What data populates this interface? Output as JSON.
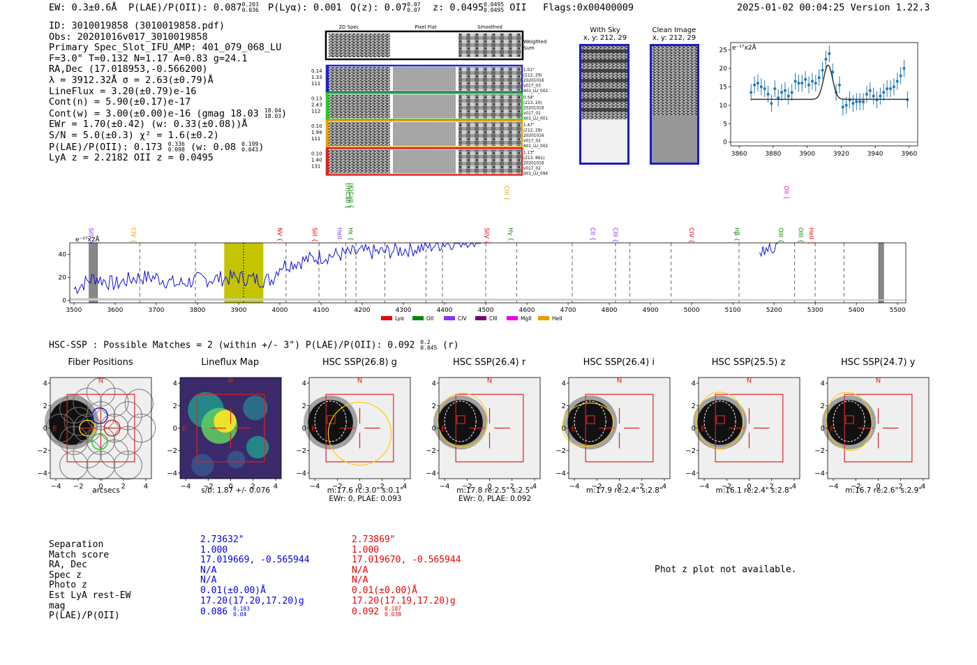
{
  "header": {
    "ew": "EW: 0.3±0.6Å",
    "plae_label": "P(LAE)/P(OII): 0.087",
    "plae_up": "0.203",
    "plae_dn": "0.036",
    "plya": "P(Lyα): 0.001",
    "q_label": "Q(z): 0.07",
    "q_up": "0.07",
    "q_dn": "0.07",
    "z_label": "z: 0.0495",
    "z_up": "0.0495",
    "z_dn": "0.0495",
    "z_line": "OII",
    "flags": "Flags:0x00400009",
    "datetime": "2025-01-02 00:04:25",
    "version": "Version 1.22.3"
  },
  "info": {
    "id": "ID: 3010019858 (3010019858.pdf)",
    "obs": "Obs: 20201016v017_3010019858",
    "primary": "Primary Spec_Slot_IFU_AMP: 401_079_068_LU",
    "fwhm": "F=3.0\"  T=0.132  N=1.17  A=0.83  g=24.1",
    "radec": "RA,Dec (17.018953,-0.566200)",
    "lambda": "λ = 3912.32Å  σ = 2.63(±0.79)Å",
    "lineflux": "LineFlux = 3.20(±0.79)e-16",
    "contn": "Cont(n) = 5.90(±0.17)e-17",
    "contw": "Cont(w) = 3.00(±0.00)e-16 (gmag 18.03",
    "contw_up": "18.04",
    "contw_dn": "18.03",
    "ewr": "EWr = 1.70(±0.42) (w: 0.33(±0.08))Å",
    "sn": "S/N = 5.0(±0.3)  χ² = 1.6(±0.2)",
    "plae": "P(LAE)/P(OII): 0.173",
    "plae_up": "0.336",
    "plae_dn": "0.098",
    "plae_w": "(w: 0.08",
    "plae_w_up": "0.199",
    "plae_w_dn": "0.043",
    "lya": "LyA z = 2.2182   OII z = 0.0495"
  },
  "fiber_panel": {
    "col_2dspec": "2D Spec",
    "col_pixflat": "Pixel Flat",
    "col_smoothed": "Smoothed",
    "weighted": "Weighted",
    "sum": "Sum",
    "rows": [
      {
        "color": "#2222cc",
        "left": [
          "0.14",
          "1.33",
          "111"
        ],
        "right": [
          "1.01\"",
          "(212, 29)",
          "20201016",
          "v017_03",
          "401_LU_002"
        ]
      },
      {
        "color": "#22cc22",
        "left": [
          "0.13",
          "2.43",
          "112"
        ],
        "right": [
          "0.54\"",
          "(213, 20)",
          "20201016",
          "v017_01",
          "401_LU_001"
        ]
      },
      {
        "color": "#e8a000",
        "left": [
          "0.10",
          "1.94",
          "111"
        ],
        "right": [
          "1.47\"",
          "(212, 29)",
          "20201016",
          "v017_02",
          "401_LU_002"
        ]
      },
      {
        "color": "#dd2222",
        "left": [
          "0.10",
          "1.40",
          "131"
        ],
        "right": [
          "1.13\"",
          "(213, 861)",
          "20201016",
          "v017_02",
          "401_LU_094"
        ]
      }
    ]
  },
  "with_sky": {
    "title": "With Sky",
    "subtitle": "x, y: 212, 29"
  },
  "clean_image": {
    "title": "Clean Image",
    "subtitle": "x, y: 212, 29"
  },
  "hsc": {
    "summary": "HSC-SSP : Possible Matches = 2 (within +/- 3\")  P(LAE)/P(OII): 0.092",
    "summary_up": "0.2",
    "summary_dn": "0.045",
    "summary_band": "(r)",
    "panels": [
      {
        "title": "Fiber Positions",
        "cap1": "arcsecs",
        "cap2": ""
      },
      {
        "title": "Lineflux Map",
        "cap1": "s/b: 1.87 +/- 0.076",
        "cap2": ""
      },
      {
        "title": "HSC SSP(26.8) g",
        "cap1": "m:17.6 rc:3.0\"  s:0.1\"",
        "cap2": "EWr: 0, PLAE: 0.093"
      },
      {
        "title": "HSC SSP(26.4) r",
        "cap1": "m:17.8  re:2.5\"  s:2.5\"",
        "cap2": "EWr: 0, PLAE: 0.092"
      },
      {
        "title": "HSC SSP(26.4) i",
        "cap1": "m:17.9  re:2.4\"  s:2.8\"",
        "cap2": ""
      },
      {
        "title": "HSC SSP(25.5) z",
        "cap1": "m:16.1  re:2.4\"  s:2.8\"",
        "cap2": ""
      },
      {
        "title": "HSC SSP(24.7) y",
        "cap1": "m:16.7  re:2.6\"  s:2.9\"",
        "cap2": ""
      }
    ],
    "compass_n": "N",
    "compass_e": "E",
    "axis_ticks": [
      "−4",
      "−2",
      "0",
      "2",
      "4"
    ]
  },
  "match_table": {
    "labels": [
      "Separation",
      "Match score",
      "RA, Dec",
      "Spec z",
      "Photo z",
      "Est LyA rest-EW",
      "mag",
      "P(LAE)/P(OII)"
    ],
    "col1": [
      "2.73632\"",
      "1.000",
      "17.019669, -0.565944",
      "N/A",
      "N/A",
      "0.01(±0.00)Å",
      "17.20(17.20,17.20)g",
      "0.086"
    ],
    "col1_up": "0.183",
    "col1_dn": "0.04",
    "col2": [
      "2.73869\"",
      "1.000",
      "17.019670, -0.565944",
      "N/A",
      "N/A",
      "0.01(±0.00)Å",
      "17.20(17.19,17.20)g",
      "0.092"
    ],
    "col2_up": "0.187",
    "col2_dn": "0.038",
    "col1_color": "#0000ee",
    "col2_color": "#ee0000"
  },
  "phot_z": "Phot z plot not available.",
  "chart_data": [
    {
      "type": "line",
      "title": "",
      "ylabel": "e⁻¹⁷x2Å",
      "xlim": [
        3855,
        3965
      ],
      "ylim": [
        -1,
        27
      ],
      "xticks": [
        3860,
        3880,
        3900,
        3920,
        3940,
        3960
      ],
      "yticks": [
        0,
        5,
        10,
        15,
        20,
        25
      ],
      "data_x": [
        3867,
        3869,
        3871,
        3873,
        3875,
        3877,
        3879,
        3881,
        3883,
        3885,
        3887,
        3889,
        3891,
        3893,
        3895,
        3897,
        3899,
        3901,
        3903,
        3905,
        3907,
        3909,
        3911,
        3913,
        3915,
        3917,
        3919,
        3921,
        3923,
        3925,
        3927,
        3929,
        3931,
        3933,
        3935,
        3937,
        3939,
        3941,
        3943,
        3945,
        3947,
        3949,
        3951,
        3953,
        3955,
        3957,
        3959
      ],
      "data_y": [
        13.5,
        15.5,
        16.0,
        15.0,
        14.5,
        13.0,
        10.5,
        14.5,
        12.0,
        13.5,
        14.0,
        12.5,
        13.5,
        16.5,
        16.0,
        16.0,
        17.0,
        15.5,
        16.5,
        16.0,
        17.5,
        19.5,
        22.5,
        24.0,
        19.0,
        13.5,
        15.5,
        9.5,
        10.0,
        11.5,
        10.5,
        11.0,
        11.0,
        11.0,
        13.0,
        14.0,
        12.5,
        11.5,
        12.5,
        13.5,
        14.5,
        14.5,
        15.0,
        16.5,
        18.0,
        20.0,
        11.5
      ],
      "err": 2.3,
      "fit_baseline": 11.6,
      "fit_center": 3912.3,
      "fit_amp": 9.3,
      "fit_sigma": 2.63
    },
    {
      "type": "line",
      "title": "",
      "ylabel": "e⁻¹⁷x2Å",
      "xlim": [
        3490,
        5520
      ],
      "ylim": [
        -2,
        50
      ],
      "xticks": [
        3500,
        3600,
        3700,
        3800,
        3900,
        4000,
        4100,
        4200,
        4300,
        4400,
        4500,
        4600,
        4700,
        4800,
        4900,
        5000,
        5100,
        5200,
        5300,
        5400,
        5500
      ],
      "yticks": [
        0,
        20,
        40
      ],
      "highlight_range": [
        3865,
        3960
      ],
      "highlight_line": 3912,
      "hatched_bands": [
        [
          3537,
          3557
        ],
        [
          5454,
          5466
        ]
      ],
      "dashed_lines": [
        3660,
        3795,
        4015,
        4095,
        4160,
        4185,
        4255,
        4355,
        4395,
        4500,
        4575,
        4710,
        4815,
        4850,
        4950,
        5115,
        5250,
        5300,
        5370
      ],
      "line_labels": [
        {
          "name": "SiIV",
          "x": 3537,
          "color": "#8833ee",
          "row": 2
        },
        {
          "name": "CIV",
          "x": 3640,
          "color": "#e89a00",
          "row": 2
        },
        {
          "name": "NV",
          "x": 3995,
          "color": "#ee0000",
          "row": 2
        },
        {
          "name": "SiII",
          "x": 4080,
          "color": "#ee0000",
          "row": 2
        },
        {
          "name": "HeII",
          "x": 4140,
          "color": "#8833ee",
          "row": 2
        },
        {
          "name": "Hε",
          "x": 4167,
          "color": "#008800",
          "row": 2
        },
        {
          "name": "(H)CaII",
          "x": 4160,
          "color": "#008800",
          "row": 0
        },
        {
          "name": "(K)CaII",
          "x": 4168,
          "color": "#008800",
          "row": 0
        },
        {
          "name": "SiIV",
          "x": 4497,
          "color": "#ee0000",
          "row": 2
        },
        {
          "name": "Hγ",
          "x": 4556,
          "color": "#008800",
          "row": 2
        },
        {
          "name": "CIII",
          "x": 4546,
          "color": "#e89a00",
          "row": 1
        },
        {
          "name": "CII",
          "x": 4755,
          "color": "#8833ee",
          "row": 2
        },
        {
          "name": "CIII",
          "x": 4810,
          "color": "#8833ee",
          "row": 2
        },
        {
          "name": "CIV",
          "x": 4995,
          "color": "#ee0000",
          "row": 2
        },
        {
          "name": "Hβ",
          "x": 5105,
          "color": "#008800",
          "row": 2
        },
        {
          "name": "OII",
          "x": 5225,
          "color": "#ee00ee",
          "row": 1
        },
        {
          "name": "OIII",
          "x": 5212,
          "color": "#008800",
          "row": 2
        },
        {
          "name": "OIII",
          "x": 5260,
          "color": "#008800",
          "row": 2
        },
        {
          "name": "HeII",
          "x": 5285,
          "color": "#ee0000",
          "row": 2
        }
      ],
      "legend": [
        {
          "name": "Lyα",
          "color": "#ee0000"
        },
        {
          "name": "OII",
          "color": "#008800"
        },
        {
          "name": "CIV",
          "color": "#8833ee"
        },
        {
          "name": "CIII",
          "color": "#7a007a"
        },
        {
          "name": "MgII",
          "color": "#ee00ee"
        },
        {
          "name": "HeII",
          "color": "#e89a00"
        }
      ],
      "anchors": [
        [
          3500,
          10
        ],
        [
          3550,
          20
        ],
        [
          3600,
          14
        ],
        [
          3650,
          20
        ],
        [
          3700,
          20
        ],
        [
          3750,
          14
        ],
        [
          3800,
          18
        ],
        [
          3850,
          19
        ],
        [
          3900,
          20
        ],
        [
          3950,
          18
        ],
        [
          3980,
          18
        ],
        [
          4000,
          30
        ],
        [
          4050,
          34
        ],
        [
          4100,
          38
        ],
        [
          4150,
          40
        ],
        [
          4200,
          42
        ],
        [
          4250,
          42
        ],
        [
          4300,
          44
        ],
        [
          4350,
          46
        ],
        [
          4400,
          50
        ]
      ],
      "red_anchors": [
        [
          5165,
          44
        ],
        [
          5175,
          40
        ],
        [
          5185,
          46
        ],
        [
          5200,
          42
        ],
        [
          5210,
          50
        ]
      ]
    }
  ]
}
